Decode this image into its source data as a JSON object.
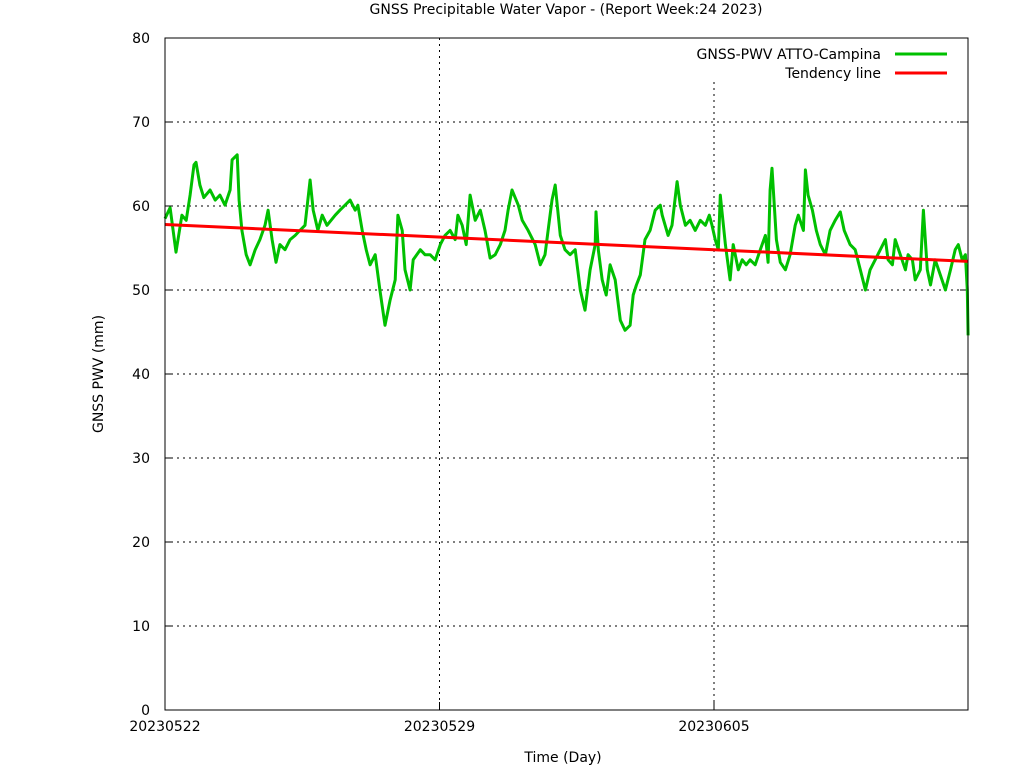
{
  "chart_data": {
    "type": "line",
    "title": "GNSS Precipitable Water Vapor - (Report Week:24  2023)",
    "xlabel": "Time (Day)",
    "ylabel": "GNSS PWV (mm)",
    "xlim": [
      0,
      20.48
    ],
    "ylim": [
      0,
      80
    ],
    "x_unit": "days since 20230522",
    "yticks": [
      0,
      10,
      20,
      30,
      40,
      50,
      60,
      70,
      80
    ],
    "xticks": [
      {
        "value": 0,
        "label": "20230522"
      },
      {
        "value": 7,
        "label": "20230529"
      },
      {
        "value": 14,
        "label": "20230605"
      }
    ],
    "grid": true,
    "legend_position": "top-right",
    "series": [
      {
        "name": "GNSS-PWV ATTO-Campina",
        "color": "#00c000",
        "x": [
          0,
          0.13,
          0.28,
          0.43,
          0.54,
          0.64,
          0.74,
          0.79,
          0.89,
          0.99,
          1.15,
          1.28,
          1.4,
          1.53,
          1.66,
          1.71,
          1.84,
          1.89,
          1.96,
          2.07,
          2.17,
          2.3,
          2.42,
          2.55,
          2.63,
          2.73,
          2.83,
          2.93,
          3.06,
          3.19,
          3.32,
          3.44,
          3.57,
          3.7,
          3.78,
          3.9,
          4.01,
          4.13,
          4.34,
          4.46,
          4.59,
          4.72,
          4.85,
          4.92,
          5.03,
          5.13,
          5.23,
          5.36,
          5.48,
          5.61,
          5.74,
          5.87,
          5.94,
          6.05,
          6.12,
          6.25,
          6.33,
          6.51,
          6.63,
          6.76,
          6.89,
          7.02,
          7.14,
          7.27,
          7.4,
          7.47,
          7.58,
          7.68,
          7.78,
          7.91,
          8.04,
          8.16,
          8.29,
          8.42,
          8.55,
          8.67,
          8.75,
          8.85,
          9.01,
          9.11,
          9.26,
          9.44,
          9.57,
          9.69,
          9.87,
          9.95,
          10.08,
          10.2,
          10.33,
          10.46,
          10.59,
          10.71,
          10.84,
          10.97,
          10.99,
          11.05,
          11.15,
          11.25,
          11.35,
          11.48,
          11.61,
          11.73,
          11.86,
          11.94,
          12.02,
          12.12,
          12.24,
          12.37,
          12.5,
          12.63,
          12.68,
          12.83,
          12.93,
          13.06,
          13.14,
          13.27,
          13.39,
          13.52,
          13.65,
          13.78,
          13.88,
          13.95,
          14.03,
          14.11,
          14.16,
          14.29,
          14.41,
          14.49,
          14.62,
          14.72,
          14.82,
          14.92,
          15.05,
          15.18,
          15.31,
          15.38,
          15.43,
          15.48,
          15.59,
          15.69,
          15.82,
          15.94,
          16.07,
          16.15,
          16.28,
          16.33,
          16.4,
          16.51,
          16.61,
          16.71,
          16.84,
          16.96,
          17.09,
          17.22,
          17.32,
          17.47,
          17.6,
          17.73,
          17.86,
          17.98,
          18.11,
          18.24,
          18.37,
          18.44,
          18.55,
          18.62,
          18.75,
          18.88,
          18.95,
          19.06,
          19.13,
          19.26,
          19.34,
          19.44,
          19.52,
          19.64,
          19.77,
          19.9,
          20.03,
          20.15,
          20.23,
          20.33,
          20.41,
          20.46,
          20.48
        ],
        "y": [
          58.5,
          59.8,
          54.5,
          58.9,
          58.3,
          61.3,
          64.9,
          65.2,
          62.5,
          61.0,
          61.9,
          60.7,
          61.3,
          60.1,
          61.9,
          65.5,
          66.1,
          60.7,
          57.1,
          54.2,
          53.0,
          54.8,
          56.0,
          57.7,
          59.5,
          56.0,
          53.3,
          55.4,
          54.8,
          56.0,
          56.5,
          57.1,
          57.7,
          63.1,
          59.5,
          57.1,
          58.9,
          57.7,
          58.9,
          59.5,
          60.1,
          60.7,
          59.5,
          60.1,
          57.1,
          54.8,
          53.0,
          54.2,
          50.0,
          45.8,
          48.8,
          51.2,
          58.9,
          57.1,
          52.4,
          50.0,
          53.6,
          54.8,
          54.2,
          54.2,
          53.6,
          55.4,
          56.5,
          57.1,
          56.0,
          58.9,
          57.7,
          55.4,
          61.3,
          58.3,
          59.5,
          57.1,
          53.8,
          54.2,
          55.4,
          57.1,
          59.5,
          61.9,
          60.1,
          58.3,
          57.1,
          55.4,
          53.0,
          54.2,
          60.7,
          62.5,
          56.5,
          54.8,
          54.2,
          54.8,
          50.0,
          47.6,
          52.4,
          55.4,
          59.3,
          54.8,
          51.2,
          49.4,
          53.0,
          51.2,
          46.4,
          45.2,
          45.8,
          49.4,
          50.6,
          51.8,
          56.0,
          57.1,
          59.5,
          60.1,
          58.9,
          56.5,
          57.7,
          62.9,
          60.1,
          57.7,
          58.3,
          57.1,
          58.3,
          57.7,
          58.9,
          57.7,
          56.0,
          54.8,
          61.3,
          55.4,
          51.2,
          55.4,
          52.4,
          53.6,
          53.0,
          53.6,
          53.0,
          54.8,
          56.5,
          53.3,
          61.9,
          64.5,
          56.0,
          53.3,
          52.4,
          54.2,
          57.7,
          58.9,
          57.1,
          64.3,
          61.3,
          59.5,
          57.1,
          55.4,
          54.2,
          57.1,
          58.3,
          59.3,
          57.1,
          55.4,
          54.8,
          52.4,
          50.0,
          52.4,
          53.6,
          54.8,
          56.0,
          53.6,
          53.0,
          56.0,
          54.2,
          52.4,
          54.2,
          53.6,
          51.2,
          52.4,
          59.5,
          52.4,
          50.6,
          53.6,
          51.8,
          50.0,
          52.4,
          54.8,
          55.4,
          53.6,
          54.2,
          50.0,
          44.6
        ]
      },
      {
        "name": "Tendency line",
        "color": "#ff0000",
        "x": [
          0,
          20.48
        ],
        "y": [
          57.8,
          53.4
        ]
      }
    ]
  }
}
